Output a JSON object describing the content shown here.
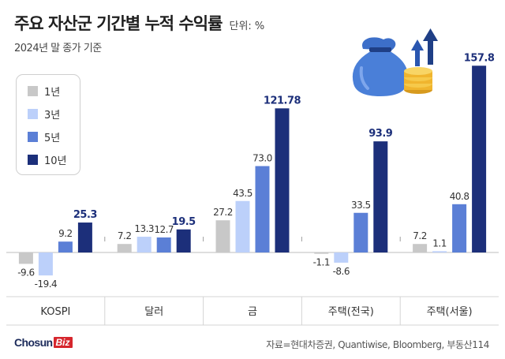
{
  "header": {
    "title": "주요 자산군 기간별 누적 수익률",
    "unit": "단위: %",
    "subtitle": "2024년 말 종가 기준"
  },
  "footer": {
    "logo_main": "Chosun",
    "logo_sub": "Biz",
    "source": "자료=현대차증권, Quantiwise, Bloomberg, 부동산114"
  },
  "icon": "money-bag-with-coins-and-up-arrows-icon",
  "chart_data": {
    "type": "bar",
    "categories": [
      "KOSPI",
      "달러",
      "금",
      "주택(전국)",
      "주택(서울)"
    ],
    "series": [
      {
        "name": "1년",
        "color": "#c8c8c8",
        "values": [
          -9.6,
          7.2,
          27.2,
          -1.1,
          7.2
        ],
        "labels": [
          "-9.6",
          "7.2",
          "27.2",
          "-1.1",
          "7.2"
        ]
      },
      {
        "name": "3년",
        "color": "#bcd0fa",
        "values": [
          -19.4,
          13.3,
          43.5,
          -8.6,
          1.1
        ],
        "labels": [
          "-19.4",
          "13.3",
          "43.5",
          "-8.6",
          "1.1"
        ]
      },
      {
        "name": "5년",
        "color": "#5b7fd6",
        "values": [
          9.2,
          12.7,
          73.0,
          33.5,
          40.8
        ],
        "labels": [
          "9.2",
          "12.7",
          "73.0",
          "33.5",
          "40.8"
        ]
      },
      {
        "name": "10년",
        "color": "#1c2f7a",
        "values": [
          25.3,
          19.5,
          121.78,
          93.9,
          157.8
        ],
        "labels": [
          "25.3",
          "19.5",
          "121.78",
          "93.9",
          "157.8"
        ]
      }
    ],
    "ylim": [
      -25,
      160
    ],
    "grid": false,
    "legend_position": "top-left",
    "highlight_label_color": "#1c2f7a"
  }
}
